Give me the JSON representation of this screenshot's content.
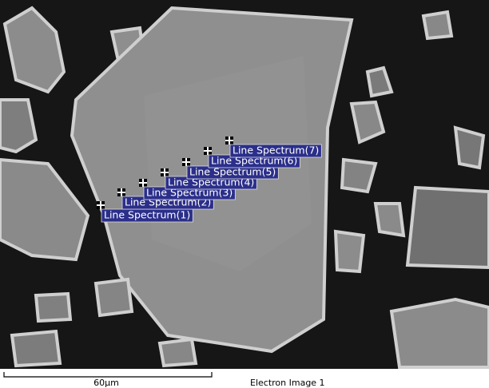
{
  "spectrum_labels": [
    "Line Spectrum(1)",
    "Line Spectrum(2)",
    "Line Spectrum(3)",
    "Line Spectrum(4)",
    "Line Spectrum(5)",
    "Line Spectrum(6)",
    "Line Spectrum(7)"
  ],
  "scale_bar": "60µm",
  "caption": "Electron Image 1"
}
